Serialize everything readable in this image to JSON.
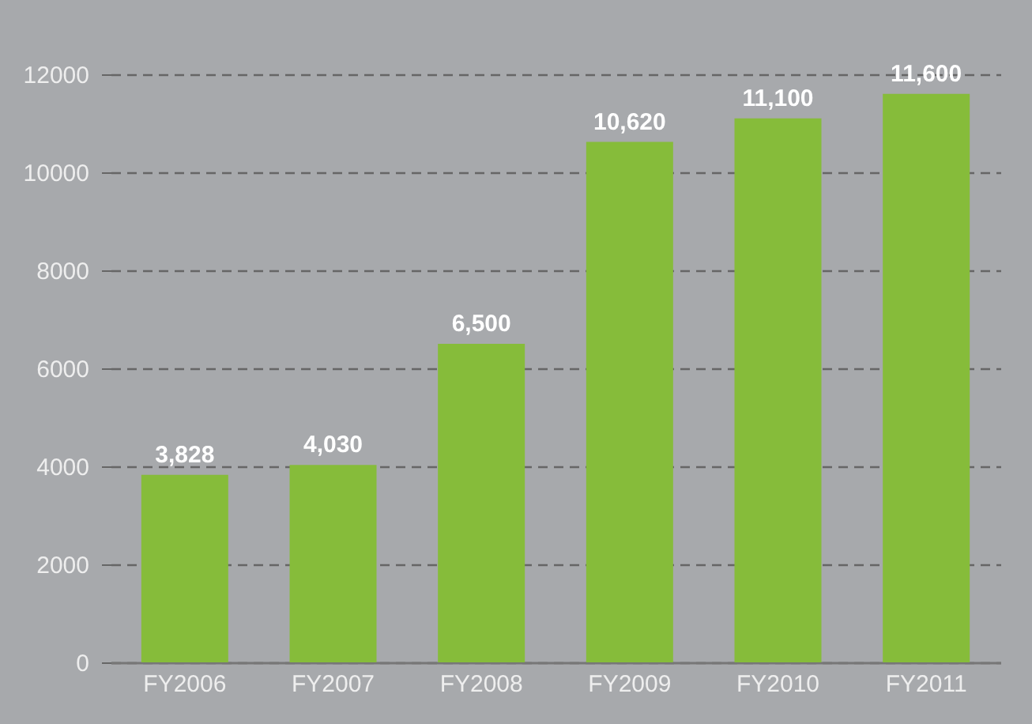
{
  "chart_data": {
    "type": "bar",
    "categories": [
      "FY2006",
      "FY2007",
      "FY2008",
      "FY2009",
      "FY2010",
      "FY2011"
    ],
    "values": [
      3828,
      4030,
      6500,
      10620,
      11100,
      11600
    ],
    "value_labels": [
      "3,828",
      "4,030",
      "6,500",
      "10,620",
      "11,100",
      "11,600"
    ],
    "color": "#86bc3a",
    "ylim": [
      0,
      12000
    ],
    "yticks": [
      0,
      2000,
      4000,
      6000,
      8000,
      10000,
      12000
    ],
    "grid": "y"
  }
}
